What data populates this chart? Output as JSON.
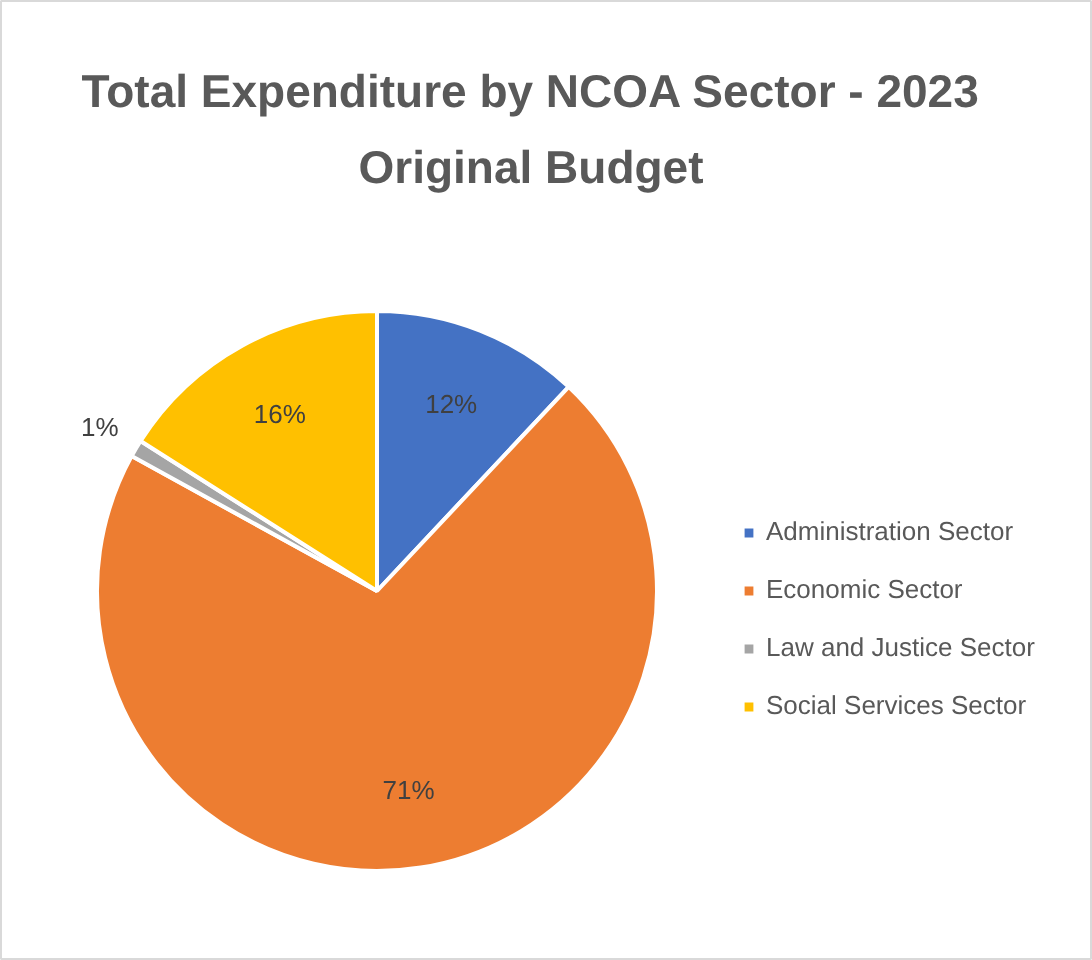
{
  "chart_data": {
    "type": "pie",
    "title": "Total Expenditure by NCOA Sector - 2023 Original Budget",
    "categories": [
      "Administration Sector",
      "Economic Sector",
      "Law and Justice Sector",
      "Social Services Sector"
    ],
    "values": [
      12,
      71,
      1,
      16
    ],
    "colors": [
      "#4472c4",
      "#ed7d31",
      "#a5a5a5",
      "#ffc000"
    ],
    "value_labels": [
      "12%",
      "71%",
      "1%",
      "16%"
    ],
    "legend": "right"
  }
}
